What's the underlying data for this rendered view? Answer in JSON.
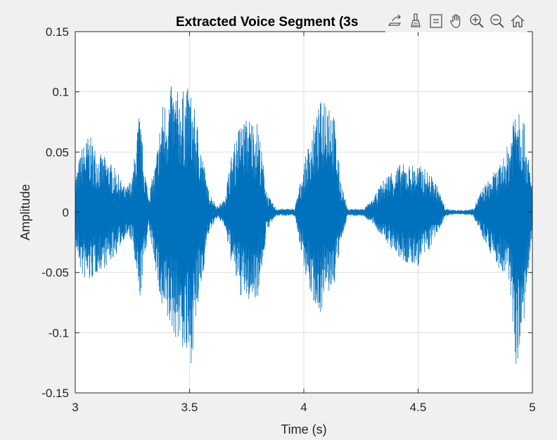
{
  "chart_data": {
    "type": "line",
    "title": "Extracted Voice Segment (3s",
    "xlabel": "Time (s)",
    "ylabel": "Amplitude",
    "xlim": [
      3,
      5
    ],
    "ylim": [
      -0.15,
      0.15
    ],
    "xticks": [
      3,
      3.5,
      4,
      4.5,
      5
    ],
    "xtick_labels": [
      "3",
      "3.5",
      "4",
      "4.5",
      "5"
    ],
    "yticks": [
      -0.15,
      -0.1,
      -0.05,
      0,
      0.05,
      0.1,
      0.15
    ],
    "ytick_labels": [
      "-0.15",
      "-0.1",
      "-0.05",
      "0",
      "0.05",
      "0.1",
      "0.15"
    ],
    "grid": true,
    "line_color": "#0072BD",
    "series": [
      {
        "name": "",
        "envelope_note_free": true,
        "x": [
          3.0,
          3.03,
          3.06,
          3.1,
          3.14,
          3.18,
          3.22,
          3.25,
          3.28,
          3.3,
          3.32,
          3.35,
          3.38,
          3.42,
          3.46,
          3.5,
          3.54,
          3.58,
          3.62,
          3.65,
          3.68,
          3.72,
          3.76,
          3.8,
          3.84,
          3.88,
          3.92,
          3.96,
          4.0,
          4.03,
          4.07,
          4.1,
          4.13,
          4.16,
          4.19,
          4.22,
          4.26,
          4.3,
          4.34,
          4.38,
          4.42,
          4.46,
          4.5,
          4.54,
          4.58,
          4.62,
          4.66,
          4.7,
          4.74,
          4.78,
          4.82,
          4.86,
          4.9,
          4.93,
          4.96,
          5.0
        ],
        "upper": [
          0.03,
          0.055,
          0.065,
          0.05,
          0.045,
          0.035,
          0.02,
          0.03,
          0.085,
          0.045,
          0.015,
          0.04,
          0.09,
          0.105,
          0.1,
          0.105,
          0.07,
          0.02,
          0.005,
          0.01,
          0.045,
          0.075,
          0.08,
          0.075,
          0.015,
          0.003,
          0.003,
          0.003,
          0.04,
          0.065,
          0.09,
          0.11,
          0.085,
          0.03,
          0.003,
          0.003,
          0.003,
          0.01,
          0.025,
          0.035,
          0.04,
          0.04,
          0.04,
          0.035,
          0.025,
          0.003,
          0.002,
          0.002,
          0.003,
          0.02,
          0.03,
          0.04,
          0.06,
          0.11,
          0.08,
          0.02
        ],
        "lower": [
          -0.03,
          -0.055,
          -0.06,
          -0.05,
          -0.045,
          -0.035,
          -0.02,
          -0.025,
          -0.08,
          -0.045,
          -0.015,
          -0.045,
          -0.09,
          -0.1,
          -0.11,
          -0.135,
          -0.08,
          -0.02,
          -0.005,
          -0.01,
          -0.04,
          -0.07,
          -0.075,
          -0.07,
          -0.015,
          -0.003,
          -0.003,
          -0.003,
          -0.045,
          -0.07,
          -0.085,
          -0.07,
          -0.065,
          -0.03,
          -0.003,
          -0.003,
          -0.003,
          -0.01,
          -0.02,
          -0.03,
          -0.04,
          -0.045,
          -0.045,
          -0.035,
          -0.02,
          -0.003,
          -0.002,
          -0.002,
          -0.003,
          -0.02,
          -0.035,
          -0.05,
          -0.06,
          -0.13,
          -0.1,
          -0.02
        ]
      }
    ]
  },
  "toolbar": {
    "icons": [
      "export-icon",
      "brush-icon",
      "datatip-icon",
      "pan-icon",
      "zoom-in-icon",
      "zoom-out-icon",
      "home-icon"
    ]
  }
}
